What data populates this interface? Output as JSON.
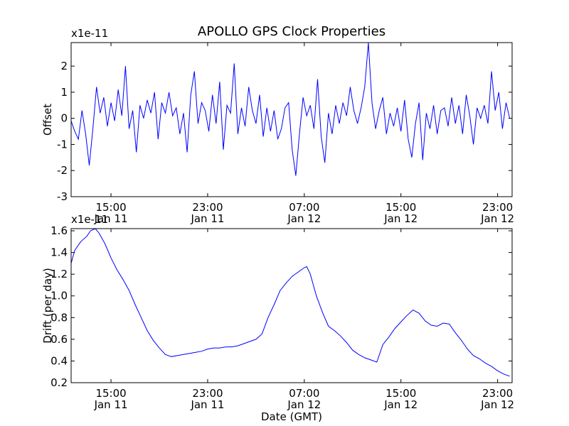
{
  "chart_data": [
    {
      "type": "line",
      "title": "APOLLO GPS Clock Properties",
      "ylabel": "Offset",
      "xlabel": "",
      "exponent_label": "x1e-11",
      "ylim": [
        -3,
        2.9
      ],
      "xlim": [
        "Jan 11 11:40",
        "Jan 13 00:10"
      ],
      "yticks": [
        -3,
        -2,
        -1,
        0,
        1,
        2
      ],
      "ytick_labels": [
        "-3",
        "-2",
        "-1",
        "0",
        "1",
        "2"
      ],
      "xticks": [
        {
          "time": "15:00",
          "date": "Jan 11",
          "hours": 15
        },
        {
          "time": "23:00",
          "date": "Jan 11",
          "hours": 23
        },
        {
          "time": "07:00",
          "date": "Jan 12",
          "hours": 31
        },
        {
          "time": "15:00",
          "date": "Jan 12",
          "hours": 39
        },
        {
          "time": "23:00",
          "date": "Jan 12",
          "hours": 47
        }
      ],
      "grid": false,
      "series": [
        {
          "color": "#0000ff",
          "x_hours": [
            11.7,
            12.0,
            12.3,
            12.6,
            12.9,
            13.2,
            13.5,
            13.8,
            14.1,
            14.4,
            14.7,
            15.0,
            15.3,
            15.6,
            15.9,
            16.2,
            16.5,
            16.8,
            17.1,
            17.4,
            17.7,
            18.0,
            18.3,
            18.6,
            18.9,
            19.2,
            19.5,
            19.8,
            20.1,
            20.4,
            20.7,
            21.0,
            21.3,
            21.6,
            21.9,
            22.2,
            22.5,
            22.8,
            23.1,
            23.4,
            23.7,
            24.0,
            24.3,
            24.6,
            24.9,
            25.2,
            25.5,
            25.8,
            26.1,
            26.4,
            26.7,
            27.0,
            27.3,
            27.6,
            27.9,
            28.2,
            28.5,
            28.8,
            29.1,
            29.4,
            29.7,
            30.0,
            30.3,
            30.6,
            30.9,
            31.2,
            31.5,
            31.8,
            32.1,
            32.4,
            32.7,
            33.0,
            33.3,
            33.6,
            33.9,
            34.2,
            34.5,
            34.8,
            35.1,
            35.4,
            35.7,
            36.0,
            36.3,
            36.6,
            36.9,
            37.2,
            37.5,
            37.8,
            38.1,
            38.4,
            38.7,
            39.0,
            39.3,
            39.6,
            39.9,
            40.2,
            40.5,
            40.8,
            41.1,
            41.4,
            41.7,
            42.0,
            42.3,
            42.6,
            42.9,
            43.2,
            43.5,
            43.8,
            44.1,
            44.4,
            44.7,
            45.0,
            45.3,
            45.6,
            45.9,
            46.2,
            46.5,
            46.8,
            47.1,
            47.4,
            47.7,
            48.0
          ],
          "values": [
            -0.1,
            -0.5,
            -0.8,
            0.3,
            -0.6,
            -1.8,
            -0.4,
            1.2,
            0.2,
            0.8,
            -0.3,
            0.6,
            -0.1,
            1.1,
            0.1,
            2.0,
            -0.4,
            0.3,
            -1.3,
            0.5,
            0.0,
            0.7,
            0.2,
            1.0,
            -0.8,
            0.6,
            0.2,
            1.0,
            0.1,
            0.4,
            -0.6,
            0.2,
            -1.3,
            0.9,
            1.8,
            -0.2,
            0.6,
            0.3,
            -0.5,
            0.9,
            -0.2,
            1.4,
            -1.2,
            0.5,
            0.2,
            2.1,
            -0.6,
            0.4,
            -0.3,
            1.2,
            0.3,
            -0.2,
            0.9,
            -0.7,
            0.4,
            -0.5,
            0.3,
            -0.8,
            -0.4,
            0.4,
            0.6,
            -1.2,
            -2.2,
            -0.6,
            0.8,
            0.1,
            0.5,
            -0.4,
            1.5,
            -0.7,
            -1.7,
            0.2,
            -0.6,
            0.5,
            -0.2,
            0.6,
            0.1,
            1.2,
            0.3,
            -0.2,
            0.4,
            1.2,
            2.9,
            0.6,
            -0.4,
            0.3,
            0.8,
            -0.6,
            0.2,
            -0.3,
            0.4,
            -0.5,
            0.7,
            -0.8,
            -1.5,
            -0.2,
            0.6,
            -1.6,
            0.2,
            -0.4,
            0.5,
            -0.6,
            0.3,
            0.4,
            -0.3,
            0.8,
            -0.2,
            0.5,
            -0.6,
            0.9,
            0.1,
            -1.0,
            0.4,
            0.0,
            0.5,
            -0.2,
            1.8,
            0.3,
            1.0,
            -0.4,
            0.6,
            0.0
          ]
        }
      ]
    },
    {
      "type": "line",
      "title": "",
      "ylabel": "Drift (per day)",
      "xlabel": "Date (GMT)",
      "exponent_label": "x1e-11",
      "ylim": [
        0.2,
        1.62
      ],
      "xlim": [
        "Jan 11 11:40",
        "Jan 13 00:10"
      ],
      "yticks": [
        0.2,
        0.4,
        0.6,
        0.8,
        1.0,
        1.2,
        1.4,
        1.6
      ],
      "ytick_labels": [
        "0.2",
        "0.4",
        "0.6",
        "0.8",
        "1.0",
        "1.2",
        "1.4",
        "1.6"
      ],
      "xticks": [
        {
          "time": "15:00",
          "date": "Jan 11",
          "hours": 15
        },
        {
          "time": "23:00",
          "date": "Jan 11",
          "hours": 23
        },
        {
          "time": "07:00",
          "date": "Jan 12",
          "hours": 31
        },
        {
          "time": "15:00",
          "date": "Jan 12",
          "hours": 39
        },
        {
          "time": "23:00",
          "date": "Jan 12",
          "hours": 47
        }
      ],
      "grid": false,
      "series": [
        {
          "color": "#0000ff",
          "x_hours": [
            11.7,
            12.0,
            12.5,
            13.0,
            13.3,
            13.7,
            14.0,
            14.5,
            15.0,
            15.5,
            16.0,
            16.5,
            17.0,
            17.5,
            18.0,
            18.5,
            19.0,
            19.5,
            20.0,
            20.5,
            21.0,
            21.5,
            22.0,
            22.5,
            23.0,
            23.5,
            24.0,
            24.5,
            25.0,
            25.5,
            26.0,
            26.5,
            27.0,
            27.5,
            28.0,
            28.5,
            29.0,
            29.5,
            30.0,
            30.5,
            31.0,
            31.2,
            31.5,
            32.0,
            32.5,
            33.0,
            33.5,
            34.0,
            34.5,
            35.0,
            35.5,
            36.0,
            36.5,
            37.0,
            37.5,
            38.0,
            38.5,
            39.0,
            39.5,
            40.0,
            40.5,
            41.0,
            41.5,
            42.0,
            42.5,
            43.0,
            43.5,
            44.0,
            44.5,
            45.0,
            45.5,
            46.0,
            46.5,
            47.0,
            47.5,
            48.0
          ],
          "values": [
            1.3,
            1.42,
            1.5,
            1.55,
            1.6,
            1.62,
            1.58,
            1.48,
            1.35,
            1.24,
            1.15,
            1.05,
            0.92,
            0.8,
            0.68,
            0.59,
            0.52,
            0.46,
            0.44,
            0.45,
            0.46,
            0.47,
            0.48,
            0.49,
            0.51,
            0.52,
            0.52,
            0.53,
            0.53,
            0.54,
            0.56,
            0.58,
            0.6,
            0.65,
            0.8,
            0.92,
            1.05,
            1.12,
            1.18,
            1.22,
            1.26,
            1.27,
            1.2,
            1.0,
            0.85,
            0.72,
            0.68,
            0.63,
            0.57,
            0.5,
            0.46,
            0.43,
            0.41,
            0.39,
            0.55,
            0.62,
            0.7,
            0.76,
            0.82,
            0.87,
            0.84,
            0.77,
            0.73,
            0.72,
            0.75,
            0.74,
            0.66,
            0.59,
            0.51,
            0.45,
            0.42,
            0.38,
            0.35,
            0.31,
            0.28,
            0.26
          ]
        }
      ]
    }
  ]
}
